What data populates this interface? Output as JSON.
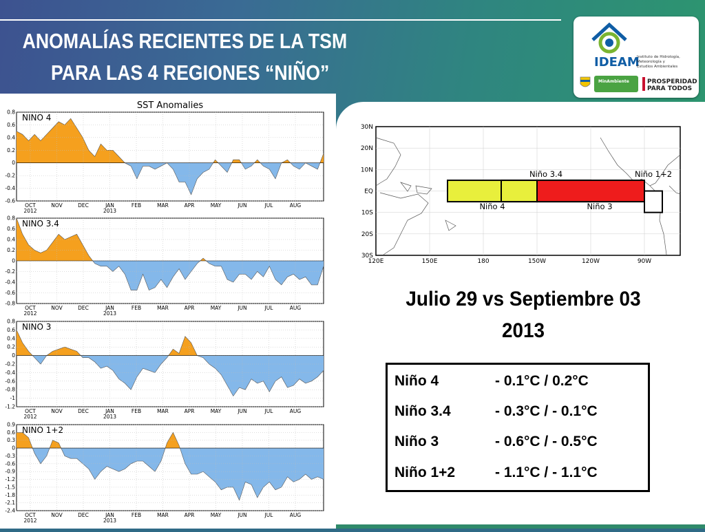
{
  "title": {
    "line1": "ANOMALÍAS RECIENTES DE LA TSM",
    "line2": "PARA LAS 4 REGIONES “NIÑO”"
  },
  "logo": {
    "name": "IDEAM",
    "tagline": [
      "Instituto de Hidrología,",
      "Meteorología y",
      "Estudios Ambientales"
    ],
    "partner_left": "MinAmbiente",
    "partner_right": [
      "PROSPERIDAD",
      "PARA TODOS"
    ],
    "colors": {
      "green": "#7ab531",
      "blue": "#0f5da5",
      "red": "#c8102e"
    }
  },
  "subtitle": {
    "line1": "Julio 29 vs Septiembre 03",
    "line2": "2013"
  },
  "table": [
    {
      "region": "Niño 4",
      "values": "-  0.1°C /  0.2°C"
    },
    {
      "region": "Niño 3.4",
      "values": "-  0.3°C / - 0.1°C"
    },
    {
      "region": "Niño 3",
      "values": "-  0.6°C / - 0.5°C"
    },
    {
      "region": "Niño 1+2",
      "values": "-  1.1°C / - 1.1°C"
    }
  ],
  "map": {
    "lat_labels": [
      "30N",
      "20N",
      "10N",
      "EQ",
      "10S",
      "20S",
      "30S"
    ],
    "lon_labels": [
      "120E",
      "150E",
      "180",
      "150W",
      "120W",
      "90W"
    ],
    "regions": [
      {
        "name": "Niño 4",
        "lon": [
          160,
          210
        ],
        "lat": [
          -5,
          5
        ],
        "color": "#e8ef3c",
        "label_pos": "below"
      },
      {
        "name": "Niño 3.4",
        "lon": [
          190,
          240
        ],
        "lat": [
          -5,
          5
        ],
        "color": "none",
        "label_pos": "above"
      },
      {
        "name": "Niño 3",
        "lon": [
          210,
          270
        ],
        "lat": [
          -5,
          5
        ],
        "color": "#ee1c1c",
        "label_pos": "below"
      },
      {
        "name": "Niño 1+2",
        "lon": [
          270,
          280
        ],
        "lat": [
          -10,
          0
        ],
        "color": "#ffffff",
        "label_pos": "above"
      }
    ],
    "colors": {
      "frame": "#000000",
      "coast": "#555555"
    }
  },
  "chart_data": {
    "type": "area",
    "title": "SST Anomalies",
    "x_ticks": [
      "OCT",
      "NOV",
      "DEC",
      "JAN",
      "FEB",
      "MAR",
      "APR",
      "MAY",
      "JUN",
      "JUL",
      "AUG"
    ],
    "x_year_labels": {
      "OCT": "2012",
      "JAN": "2013"
    },
    "colors": {
      "positive": "#f5a01e",
      "negative": "#84b8ea"
    },
    "panels": [
      {
        "name": "NINO 4",
        "ylim": [
          -0.6,
          0.8
        ],
        "yticks": [
          "0.8",
          "0.6",
          "0.4",
          "0.2",
          "0",
          "-0.2",
          "-0.4",
          "-0.6"
        ],
        "values": [
          0.5,
          0.45,
          0.35,
          0.45,
          0.35,
          0.45,
          0.55,
          0.65,
          0.6,
          0.7,
          0.55,
          0.4,
          0.2,
          0.1,
          0.3,
          0.2,
          0.2,
          0.1,
          0.0,
          -0.05,
          -0.25,
          -0.05,
          -0.05,
          -0.1,
          -0.05,
          0.0,
          -0.1,
          -0.3,
          -0.3,
          -0.5,
          -0.25,
          -0.15,
          -0.1,
          0.05,
          -0.05,
          -0.15,
          0.05,
          0.05,
          -0.1,
          -0.05,
          0.05,
          -0.05,
          -0.1,
          -0.25,
          0.0,
          0.05,
          -0.05,
          -0.1,
          0.0,
          -0.05,
          -0.1,
          0.15
        ]
      },
      {
        "name": "NINO 3.4",
        "ylim": [
          -0.8,
          0.8
        ],
        "yticks": [
          "0.8",
          "0.6",
          "0.4",
          "0.2",
          "0",
          "-0.2",
          "-0.4",
          "-0.6",
          "-0.8"
        ],
        "values": [
          0.8,
          0.5,
          0.3,
          0.2,
          0.15,
          0.2,
          0.35,
          0.5,
          0.4,
          0.45,
          0.5,
          0.3,
          0.1,
          -0.05,
          -0.1,
          -0.1,
          -0.2,
          -0.1,
          -0.25,
          -0.55,
          -0.55,
          -0.25,
          -0.55,
          -0.5,
          -0.35,
          -0.5,
          -0.3,
          -0.15,
          -0.35,
          -0.2,
          -0.05,
          0.05,
          -0.05,
          -0.1,
          -0.1,
          -0.35,
          -0.4,
          -0.25,
          -0.25,
          -0.35,
          -0.2,
          -0.3,
          -0.1,
          -0.35,
          -0.45,
          -0.3,
          -0.25,
          -0.35,
          -0.3,
          -0.45,
          -0.45,
          -0.1
        ]
      },
      {
        "name": "NINO 3",
        "ylim": [
          -1.2,
          0.8
        ],
        "yticks": [
          "0.8",
          "0.6",
          "0.4",
          "0.2",
          "0",
          "-0.2",
          "-0.4",
          "-0.6",
          "-0.8",
          "-1",
          "-1.2"
        ],
        "values": [
          0.6,
          0.3,
          0.1,
          -0.05,
          -0.2,
          0.0,
          0.1,
          0.15,
          0.2,
          0.15,
          0.1,
          -0.05,
          -0.05,
          -0.15,
          -0.3,
          -0.25,
          -0.35,
          -0.55,
          -0.65,
          -0.8,
          -0.5,
          -0.3,
          -0.35,
          -0.4,
          -0.2,
          -0.05,
          0.15,
          0.05,
          0.45,
          0.3,
          0.0,
          -0.05,
          -0.2,
          -0.3,
          -0.45,
          -0.7,
          -0.95,
          -0.75,
          -0.8,
          -0.55,
          -0.65,
          -0.6,
          -0.85,
          -0.6,
          -0.5,
          -0.75,
          -0.7,
          -0.55,
          -0.65,
          -0.6,
          -0.5,
          -0.35
        ]
      },
      {
        "name": "NINO 1+2",
        "ylim": [
          -2.4,
          0.9
        ],
        "yticks": [
          "0.9",
          "0.6",
          "0.3",
          "0",
          "-0.3",
          "-0.6",
          "-0.9",
          "-1.2",
          "-1.5",
          "-1.8",
          "-2.1",
          "-2.4"
        ],
        "values": [
          0.6,
          0.6,
          0.4,
          -0.2,
          -0.6,
          -0.3,
          0.3,
          0.2,
          -0.3,
          -0.4,
          -0.4,
          -0.6,
          -0.8,
          -1.2,
          -0.9,
          -0.7,
          -0.8,
          -0.9,
          -0.8,
          -0.6,
          -0.5,
          -0.5,
          -0.7,
          -0.9,
          -0.5,
          0.2,
          0.6,
          0.1,
          -0.6,
          -1.0,
          -1.0,
          -0.9,
          -1.1,
          -1.3,
          -1.6,
          -1.5,
          -1.5,
          -2.0,
          -1.3,
          -1.4,
          -1.9,
          -1.5,
          -1.3,
          -1.6,
          -1.5,
          -1.1,
          -1.3,
          -1.2,
          -1.0,
          -1.2,
          -1.1,
          -1.2
        ]
      }
    ]
  }
}
